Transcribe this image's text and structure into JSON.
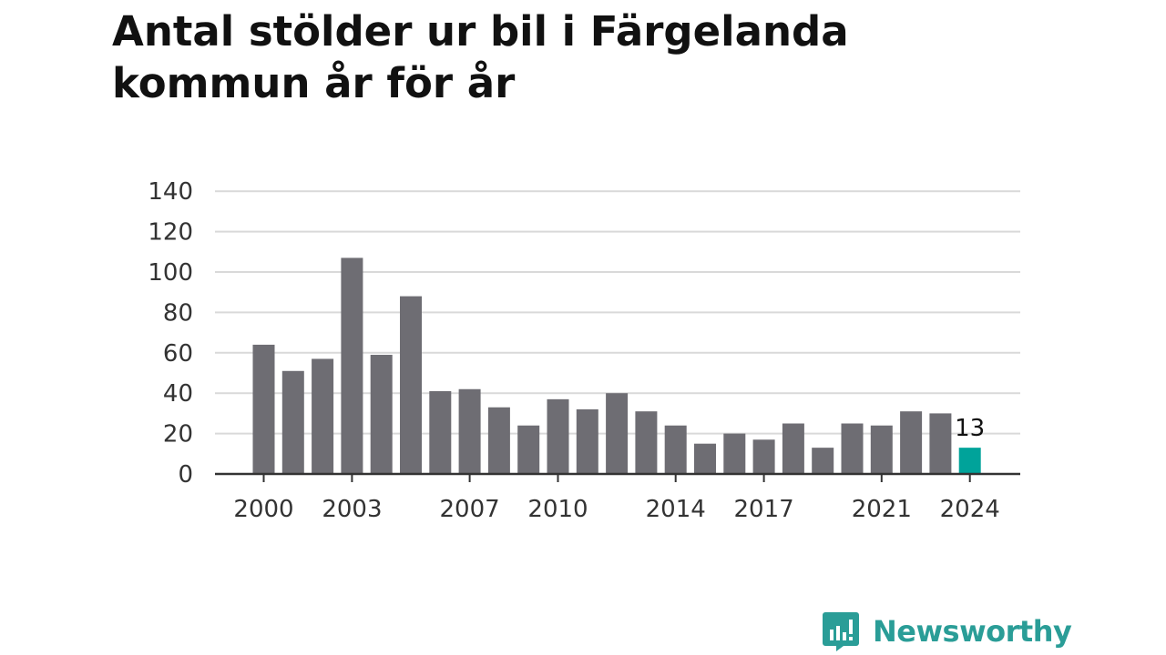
{
  "title": "Antal stölder ur bil i Färgelanda kommun år för år",
  "brand": {
    "name": "Newsworthy",
    "icon": "newsworthy-logo-icon",
    "color": "#2a9d97"
  },
  "colors": {
    "bar": "#6e6d73",
    "highlight": "#00a39a",
    "grid": "#d9d9d9",
    "axis": "#333333"
  },
  "chart_data": {
    "type": "bar",
    "title": "Antal stölder ur bil i Färgelanda kommun år för år",
    "xlabel": "",
    "ylabel": "",
    "categories": [
      "2000",
      "2001",
      "2002",
      "2003",
      "2004",
      "2005",
      "2006",
      "2007",
      "2008",
      "2009",
      "2010",
      "2011",
      "2012",
      "2013",
      "2014",
      "2015",
      "2016",
      "2017",
      "2018",
      "2019",
      "2020",
      "2021",
      "2022",
      "2023",
      "2024"
    ],
    "values": [
      64,
      51,
      57,
      107,
      59,
      88,
      41,
      42,
      33,
      24,
      37,
      32,
      40,
      31,
      24,
      15,
      20,
      17,
      25,
      13,
      25,
      24,
      31,
      30,
      13
    ],
    "x_tick_labels": [
      "2000",
      "2003",
      "2007",
      "2010",
      "2014",
      "2017",
      "2021",
      "2024"
    ],
    "y_ticks": [
      0,
      20,
      40,
      60,
      80,
      100,
      120,
      140
    ],
    "ylim": [
      0,
      140
    ],
    "highlight": {
      "category": "2024",
      "label": "13"
    },
    "grid": true,
    "legend": "none"
  }
}
